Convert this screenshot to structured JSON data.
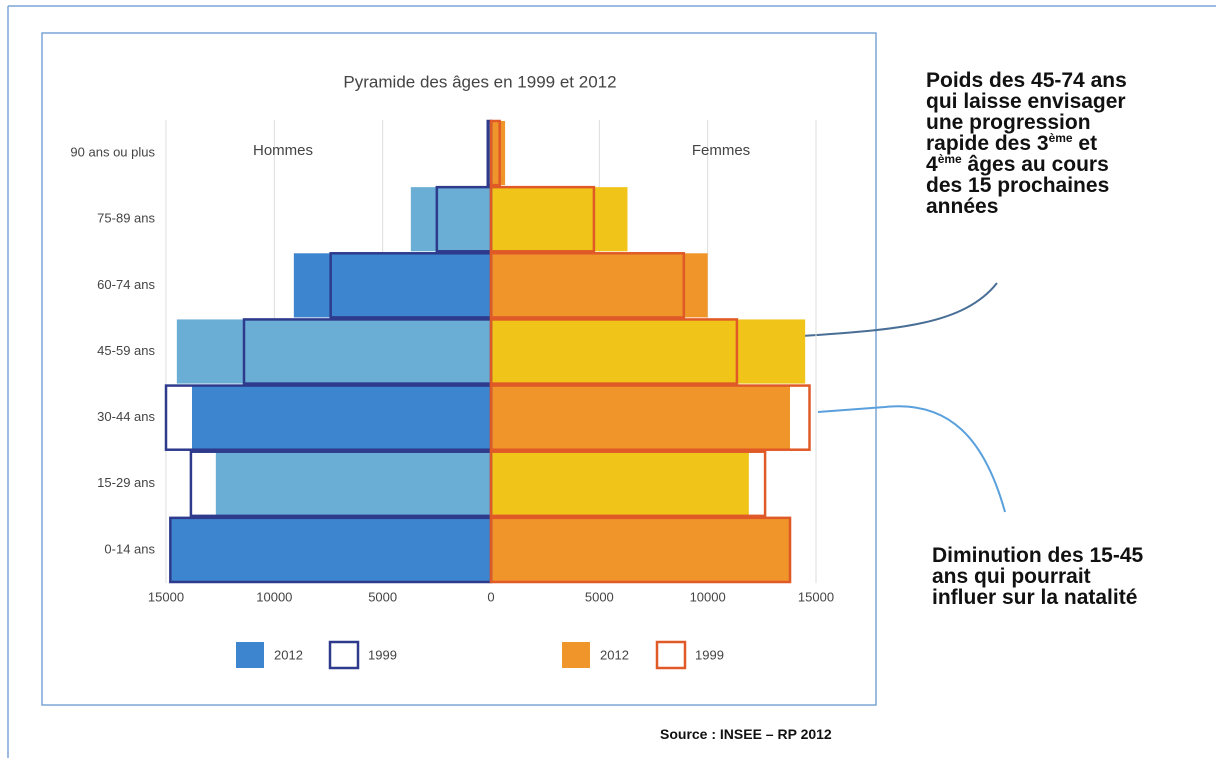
{
  "chart_data": {
    "type": "pyramid",
    "title": "Pyramide des âges en 1999 et 2012",
    "left_label": "Hommes",
    "right_label": "Femmes",
    "categories": [
      "90 ans ou plus",
      "75-89 ans",
      "60-74 ans",
      "45-59 ans",
      "30-44 ans",
      "15-29 ans",
      "0-14 ans"
    ],
    "series": [
      {
        "name": "2012",
        "side": "left",
        "style": "fill",
        "color": "#3d85cf",
        "colors": [
          "#2f5ea8",
          "#6aaed6",
          "#3d85cf",
          "#6aaed6",
          "#3d85cf",
          "#6aaed6",
          "#3d85cf"
        ],
        "values": [
          150,
          3700,
          9100,
          14500,
          13800,
          12700,
          14800
        ]
      },
      {
        "name": "1999",
        "side": "left",
        "style": "outline",
        "color": "#2e3a8c",
        "values": [
          150,
          2500,
          7400,
          11400,
          15000,
          13850,
          14800
        ]
      },
      {
        "name": "2012",
        "side": "right",
        "style": "fill",
        "color": "#f0952a",
        "colors": [
          "#f0952a",
          "#f0c419",
          "#f0952a",
          "#f0c419",
          "#f0952a",
          "#f0c419",
          "#f0952a"
        ],
        "values": [
          650,
          6300,
          10000,
          14500,
          13800,
          11900,
          13850
        ]
      },
      {
        "name": "1999",
        "side": "right",
        "style": "outline",
        "color": "#e05a28",
        "values": [
          400,
          4750,
          8900,
          11350,
          14700,
          12650,
          13800
        ]
      }
    ],
    "xlim": [
      -15000,
      15000
    ],
    "xticks": [
      {
        "value": -15000,
        "label": "15000"
      },
      {
        "value": -10000,
        "label": "10000"
      },
      {
        "value": -5000,
        "label": "5000"
      },
      0,
      5000,
      10000,
      15000
    ],
    "grid": true
  },
  "annotations": [
    {
      "lines": [
        [
          "Poids des 45-74 ans"
        ],
        [
          "qui laisse envisager"
        ],
        [
          "une progression"
        ],
        [
          "rapide des 3",
          "ème",
          " et"
        ],
        [
          "4",
          "ème",
          " âges au cours"
        ],
        [
          "des 15 prochaines"
        ],
        [
          "années"
        ]
      ]
    },
    {
      "lines": [
        [
          "Diminution des 15-45"
        ],
        [
          "ans qui pourrait"
        ],
        [
          "influer sur la natalité"
        ]
      ]
    }
  ],
  "source": "Source : INSEE – RP 2012"
}
